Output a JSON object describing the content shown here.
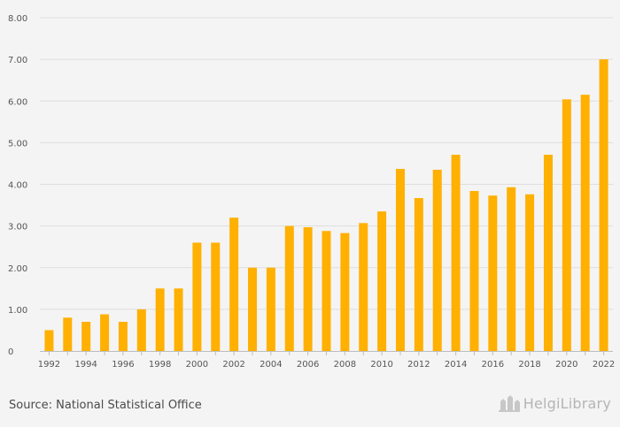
{
  "chart_data": {
    "type": "bar",
    "title": "",
    "xlabel": "",
    "ylabel": "",
    "ylim": [
      0,
      8
    ],
    "yticks": [
      "0",
      "1.00",
      "2.00",
      "3.00",
      "4.00",
      "5.00",
      "6.00",
      "7.00",
      "8.00"
    ],
    "grid": true,
    "bar_color": "#ffb000",
    "categories": [
      "1992",
      "1993",
      "1994",
      "1995",
      "1996",
      "1997",
      "1998",
      "1999",
      "2000",
      "2001",
      "2002",
      "2003",
      "2004",
      "2005",
      "2006",
      "2007",
      "2008",
      "2009",
      "2010",
      "2011",
      "2012",
      "2013",
      "2014",
      "2015",
      "2016",
      "2017",
      "2018",
      "2019",
      "2020",
      "2021",
      "2022"
    ],
    "x_labels": [
      "1992",
      "1994",
      "1996",
      "1998",
      "2000",
      "2002",
      "2004",
      "2006",
      "2008",
      "2010",
      "2012",
      "2014",
      "2016",
      "2018",
      "2020",
      "2022"
    ],
    "values": [
      0.5,
      0.8,
      0.7,
      0.88,
      0.7,
      1.0,
      1.5,
      1.5,
      2.6,
      2.6,
      3.2,
      2.0,
      2.0,
      3.0,
      2.97,
      2.88,
      2.83,
      3.07,
      3.35,
      4.37,
      3.67,
      4.35,
      4.71,
      3.84,
      3.73,
      3.93,
      3.76,
      4.71,
      6.04,
      6.15,
      7.0
    ]
  },
  "footer": {
    "source": "Source: National Statistical Office",
    "brand": "HelgiLibrary",
    "brand_icon": "helgi-logo-icon"
  }
}
